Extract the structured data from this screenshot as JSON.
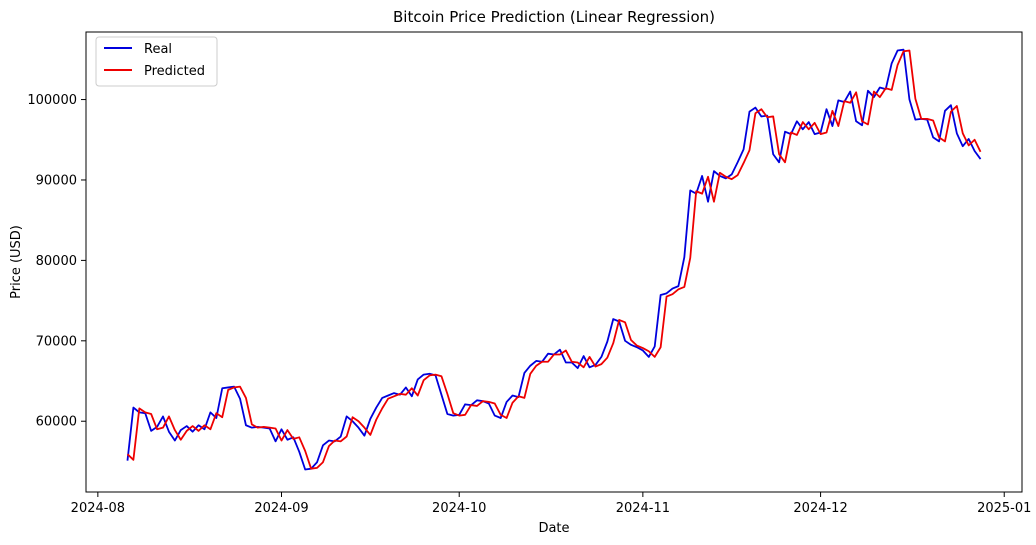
{
  "chart_data": {
    "type": "line",
    "title": "Bitcoin Price Prediction (Linear Regression)",
    "xlabel": "Date",
    "ylabel": "Price (USD)",
    "xlim": [
      "2024-07-30",
      "2025-01-04"
    ],
    "ylim": [
      51200,
      108400
    ],
    "x_ticks": [
      "2024-08",
      "2024-09",
      "2024-10",
      "2024-11",
      "2024-12",
      "2025-01"
    ],
    "y_ticks": [
      60000,
      70000,
      80000,
      90000,
      100000
    ],
    "legend": {
      "position": "top-left",
      "entries": [
        "Real",
        "Predicted"
      ]
    },
    "grid": false,
    "start_date": "2024-08-06",
    "series": [
      {
        "name": "Real",
        "color": "#0000dd",
        "values": [
          55100,
          61700,
          61100,
          61000,
          58800,
          59300,
          60600,
          58700,
          57600,
          58900,
          59400,
          58700,
          59500,
          59000,
          61100,
          60400,
          64100,
          64200,
          64300,
          62800,
          59500,
          59200,
          59300,
          59200,
          59100,
          57500,
          59000,
          57700,
          58000,
          56200,
          54000,
          54100,
          54900,
          57000,
          57600,
          57500,
          58100,
          60600,
          60000,
          59200,
          58200,
          60300,
          61700,
          62900,
          63200,
          63500,
          63300,
          64200,
          63100,
          65200,
          65800,
          65900,
          65700,
          63300,
          60900,
          60700,
          60800,
          62100,
          62000,
          62600,
          62500,
          62200,
          60700,
          60400,
          62400,
          63200,
          63000,
          66000,
          66900,
          67500,
          67400,
          68400,
          68300,
          68900,
          67300,
          67300,
          66600,
          68100,
          66700,
          67000,
          68000,
          69900,
          72700,
          72400,
          70000,
          69500,
          69200,
          68800,
          68000,
          69300,
          75700,
          75900,
          76500,
          76800,
          80400,
          88700,
          88300,
          90500,
          87300,
          91100,
          90500,
          90200,
          90700,
          92200,
          93800,
          98500,
          99000,
          97900,
          98000,
          93200,
          92200,
          96000,
          95700,
          97300,
          96300,
          97200,
          95700,
          95900,
          98800,
          96700,
          99900,
          99700,
          101000,
          97300,
          96800,
          101100,
          100300,
          101500,
          101300,
          104500,
          106100,
          106200,
          100000,
          97500,
          97600,
          97500,
          95300,
          94800,
          98600,
          99300,
          95800,
          94200,
          95100,
          93600,
          92600
        ]
      },
      {
        "name": "Predicted",
        "color": "#ee0000",
        "values": [
          55900,
          55200,
          61600,
          61100,
          60900,
          59000,
          59200,
          60600,
          58900,
          57700,
          58800,
          59400,
          58800,
          59500,
          59000,
          61000,
          60500,
          63900,
          64200,
          64300,
          62900,
          59600,
          59200,
          59300,
          59200,
          59100,
          57600,
          58900,
          57800,
          58000,
          56300,
          54100,
          54200,
          54900,
          56900,
          57600,
          57500,
          58100,
          60500,
          60000,
          59200,
          58300,
          60200,
          61600,
          62800,
          63100,
          63400,
          63300,
          64100,
          63200,
          65100,
          65700,
          65800,
          65600,
          63400,
          61000,
          60700,
          60800,
          62000,
          61900,
          62500,
          62400,
          62200,
          60800,
          60400,
          62300,
          63100,
          62900,
          65900,
          66900,
          67400,
          67400,
          68300,
          68300,
          68800,
          67400,
          67300,
          66700,
          68000,
          66800,
          67100,
          67900,
          69700,
          72600,
          72300,
          70100,
          69400,
          69100,
          68700,
          68000,
          69200,
          75500,
          75800,
          76400,
          76700,
          80300,
          88600,
          88300,
          90400,
          87300,
          90900,
          90400,
          90100,
          90600,
          92100,
          93700,
          98300,
          98800,
          97800,
          97900,
          93200,
          92200,
          95900,
          95600,
          97200,
          96300,
          97100,
          95700,
          95900,
          98600,
          96700,
          99800,
          99600,
          100900,
          97300,
          96900,
          101000,
          100300,
          101400,
          101200,
          104300,
          106000,
          106100,
          100100,
          97600,
          97600,
          97400,
          95300,
          94800,
          98500,
          99200,
          95800,
          94300,
          95000,
          93500
        ]
      }
    ]
  }
}
